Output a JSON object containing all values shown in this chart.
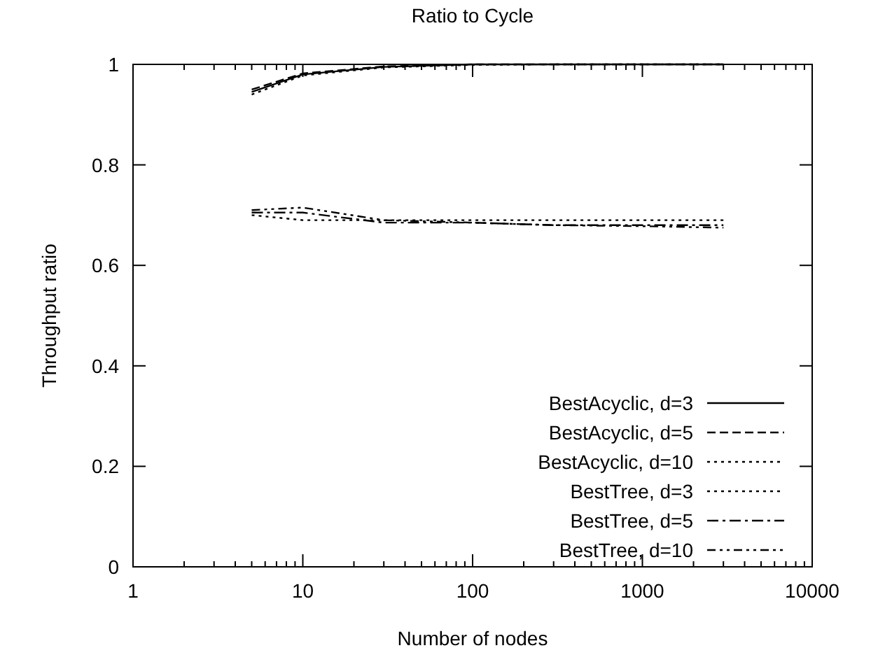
{
  "chart_data": {
    "type": "line",
    "title": "Ratio to Cycle",
    "xlabel": "Number of nodes",
    "ylabel": "Throughput ratio",
    "log": "x",
    "xlim": [
      1,
      10000
    ],
    "xticks": [
      1,
      10,
      100,
      1000,
      10000
    ],
    "ylim": [
      0,
      1
    ],
    "yticks": [
      0,
      0.2,
      0.4,
      0.6,
      0.8,
      1
    ],
    "grid": false,
    "legend": "bottom right",
    "x": [
      5,
      10,
      30,
      100,
      300,
      1000,
      3000
    ],
    "series": [
      {
        "name": "BestAcyclic, d=3",
        "color": "#000000",
        "line_style": "solid",
        "values": [
          0.945,
          0.98,
          0.995,
          1.0,
          1.0,
          1.0,
          1.0
        ]
      },
      {
        "name": "BestAcyclic, d=5",
        "color": "#000000",
        "line_style": "dashed",
        "values": [
          0.95,
          0.982,
          0.996,
          1.0,
          1.0,
          1.0,
          1.0
        ]
      },
      {
        "name": "BestAcyclic, d=10",
        "color": "#000000",
        "line_style": "dotted",
        "values": [
          0.94,
          0.978,
          0.994,
          0.999,
          1.0,
          1.0,
          1.0
        ]
      },
      {
        "name": "BestTree, d=3",
        "color": "#000000",
        "line_style": "dotted",
        "values": [
          0.7,
          0.69,
          0.69,
          0.69,
          0.69,
          0.69,
          0.69
        ]
      },
      {
        "name": "BestTree, d=5",
        "color": "#000000",
        "line_style": "dashdot",
        "values": [
          0.705,
          0.705,
          0.685,
          0.685,
          0.68,
          0.68,
          0.68
        ]
      },
      {
        "name": "BestTree, d=10",
        "color": "#000000",
        "line_style": "dashdotdot",
        "values": [
          0.71,
          0.715,
          0.69,
          0.685,
          0.68,
          0.678,
          0.675
        ]
      }
    ]
  }
}
